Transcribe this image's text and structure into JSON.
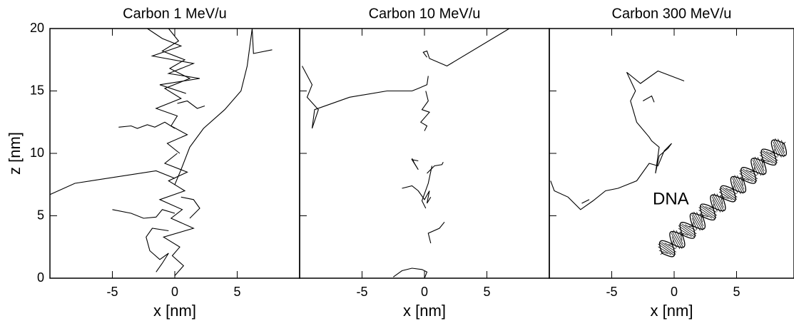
{
  "chart_data": [
    {
      "type": "line",
      "title": "Carbon 1 MeV/u",
      "x_label": "x [nm]",
      "y_label": "z [nm]",
      "xlim": [
        -10,
        10
      ],
      "ylim": [
        0,
        20
      ],
      "xticks": [
        -5,
        0,
        5
      ],
      "yticks": [
        0,
        5,
        10,
        15,
        20
      ],
      "color": "#000000",
      "series": [
        {
          "x": [
            7.8,
            6.3,
            6.2,
            5.8,
            5.3,
            4,
            2.3,
            1.2,
            0.5,
            0
          ],
          "values": [
            18.3,
            18,
            20,
            17,
            15,
            13.5,
            12,
            10.5,
            8.7,
            7.5
          ]
        },
        {
          "x": [
            -10,
            -8,
            -1.5,
            0
          ],
          "values": [
            6.7,
            7.6,
            8.6,
            8
          ]
        },
        {
          "x": [
            -0.5,
            0.3,
            -1,
            0.8,
            -0.4,
            1.2,
            -0.8,
            0.5,
            -1.5,
            0.2,
            -0.3,
            1,
            -0.6,
            0.4
          ],
          "values": [
            20,
            19,
            18.2,
            17.5,
            16.8,
            16,
            15.2,
            14.4,
            13.6,
            13,
            12.2,
            11.5,
            10.8,
            10
          ]
        },
        {
          "x": [
            0.2,
            -0.8,
            1,
            -0.5,
            0.8,
            -1.2,
            0.6,
            -0.3,
            1.5,
            -0.9,
            0.4,
            -0.2,
            0.7,
            0
          ],
          "values": [
            10,
            9.2,
            8.5,
            7.8,
            7,
            6.3,
            5.5,
            4.8,
            4,
            3.3,
            2.5,
            1.8,
            1,
            0.2
          ]
        },
        {
          "x": [
            -2.2,
            -1,
            0.5,
            -1.8,
            1.5,
            -0.5,
            2,
            -1.2,
            0.9
          ],
          "values": [
            20,
            19.2,
            18.6,
            17.8,
            17.2,
            16.4,
            16,
            15.5,
            14.8
          ]
        },
        {
          "x": [
            -4.5,
            -3.5,
            -3,
            -2.2,
            -1.6,
            -0.8,
            0
          ],
          "values": [
            12.1,
            12.2,
            12,
            12.3,
            12.1,
            12.5,
            12
          ]
        },
        {
          "x": [
            -5,
            -3.5,
            -2.5,
            -1.5,
            -1,
            0
          ],
          "values": [
            5.5,
            5.2,
            4.8,
            4.9,
            5.5,
            5.2
          ]
        },
        {
          "x": [
            -0.5,
            -1.8,
            -2.3,
            -2,
            -1.2,
            -0.5,
            -1,
            -1.5
          ],
          "values": [
            3.8,
            4,
            3.3,
            2.2,
            1.5,
            2,
            1.2,
            0.5
          ]
        },
        {
          "x": [
            0.5,
            1.5,
            2,
            1.6,
            1.2
          ],
          "values": [
            6.5,
            6.3,
            5.6,
            5.2,
            4.8
          ]
        },
        {
          "x": [
            0.2,
            1,
            1.8,
            2.4
          ],
          "values": [
            14,
            14.2,
            13.6,
            13.8
          ]
        }
      ]
    },
    {
      "type": "line",
      "title": "Carbon 10 MeV/u",
      "x_label": "x [nm]",
      "xlim": [
        -10,
        10
      ],
      "ylim": [
        0,
        20
      ],
      "xticks": [
        -5,
        0,
        5
      ],
      "color": "#000000",
      "series": [
        {
          "x": [
            6.8,
            1.8,
            0.4,
            0.2,
            -0.1,
            0.2
          ],
          "values": [
            20,
            17,
            17.6,
            18.2,
            18.1,
            17.7
          ]
        },
        {
          "x": [
            -9.8,
            -9,
            -9.4,
            -8.5,
            -9,
            -8.8,
            -6,
            -3,
            -1,
            -0.5,
            0.2,
            0.3
          ],
          "values": [
            17,
            15.5,
            14.5,
            13.5,
            12,
            13.5,
            14.5,
            15,
            15,
            15.2,
            15.5,
            16.2
          ]
        },
        {
          "x": [
            0.1,
            0.3,
            -0.2,
            0.4,
            -0.3,
            0.2,
            0
          ],
          "values": [
            15,
            14.2,
            13.5,
            13.3,
            12.5,
            12.2,
            11.8
          ]
        },
        {
          "x": [
            -1,
            -0.8,
            -0.5,
            -1,
            -0.5
          ],
          "values": [
            9.6,
            9.2,
            8.7,
            9.5,
            9.4
          ]
        },
        {
          "x": [
            0.2,
            0.8,
            1.4,
            1.5
          ],
          "values": [
            8.4,
            9,
            9.1,
            9.3
          ]
        },
        {
          "x": [
            -1.8,
            -1,
            -0.5,
            0,
            0.4,
            0.2,
            0.5
          ],
          "values": [
            7.2,
            7.4,
            7,
            6.3,
            7,
            6,
            6.5
          ]
        },
        {
          "x": [
            0.6,
            0.3,
            -0.2,
            0.1
          ],
          "values": [
            9,
            7.6,
            6.2,
            5.6
          ]
        },
        {
          "x": [
            1.6,
            1.2,
            0.3,
            0.5
          ],
          "values": [
            4.5,
            4,
            3.6,
            2.8
          ]
        },
        {
          "x": [
            -2.5,
            -1.8,
            -1,
            -0.2,
            0.2,
            0
          ],
          "values": [
            0.1,
            0.6,
            0.8,
            0.7,
            0.5,
            0
          ]
        }
      ]
    },
    {
      "type": "line",
      "title": "Carbon 300 MeV/u",
      "x_label": "x [nm]",
      "annotation": "DNA",
      "xlim": [
        -10,
        9.6
      ],
      "ylim": [
        0,
        20
      ],
      "xticks": [
        -5,
        0,
        5
      ],
      "color": "#000000",
      "series": [
        {
          "x": [
            -9.9,
            -9.6,
            -8.5,
            -7.5,
            -6.5,
            -5.5,
            -4.5,
            -3,
            -2,
            -1.3,
            -0.8,
            -0.2,
            -0.5,
            -1.2,
            -1.5,
            -1.2,
            -1.8,
            -2,
            -3,
            -3.5,
            -3.1,
            -3.8,
            -2.7,
            -1.3,
            0.8
          ],
          "values": [
            7.8,
            7,
            6.5,
            5.5,
            6.2,
            7,
            7.2,
            7.8,
            9.2,
            9,
            10.2,
            10.8,
            10.4,
            9.8,
            8.4,
            10.5,
            11,
            11.3,
            12.5,
            14.2,
            15,
            16.5,
            15.6,
            16.6,
            15.8
          ]
        },
        {
          "x": [
            -2.5,
            -1.8,
            -1.6
          ],
          "values": [
            14.2,
            14.6,
            14.1
          ]
        },
        {
          "x": [
            -7.4,
            -6.8
          ],
          "values": [
            6,
            6.3
          ]
        }
      ]
    }
  ]
}
